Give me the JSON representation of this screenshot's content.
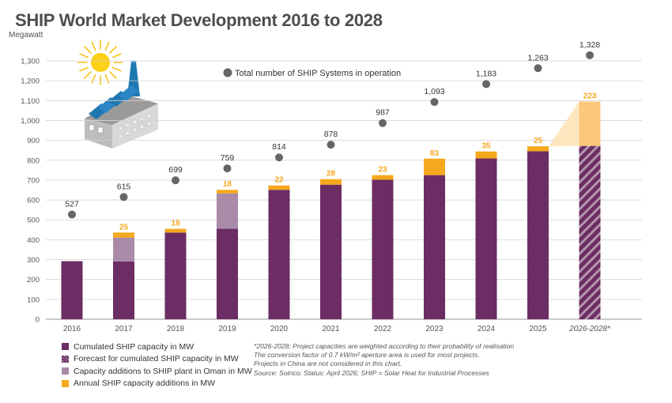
{
  "title": "SHIP World Market Development 2016 to 2028",
  "colors": {
    "cumulated": "#6b2d63",
    "forecast": "#6b2d63",
    "oman": "#a98aa7",
    "annual": "#f5a81c",
    "annual_forecast": "#fbc87a",
    "systems_dot": "#666666",
    "grid": "#d4d4d4",
    "axis_text": "#555555",
    "label_orange": "#f5a81c"
  },
  "chart_data": {
    "type": "bar",
    "ylabel": "Megawatt",
    "ylim": [
      0,
      1300
    ],
    "yticks": [
      "0",
      "100",
      "200",
      "300",
      "400",
      "500",
      "600",
      "700",
      "800",
      "900",
      "1,000",
      "1,100",
      "1,200",
      "1,300"
    ],
    "categories": [
      "2016",
      "2017",
      "2018",
      "2019",
      "2020",
      "2021",
      "2022",
      "2023",
      "2024",
      "2025",
      "2026-2028*"
    ],
    "series": [
      {
        "name": "Cumulated SHIP capacity in MW",
        "values": [
          292,
          291,
          436,
          455,
          651,
          677,
          702,
          725,
          809,
          845,
          null
        ]
      },
      {
        "name": "Forecast for cumulated SHIP capacity in MW",
        "values": [
          null,
          null,
          null,
          null,
          null,
          null,
          null,
          null,
          null,
          null,
          872
        ]
      },
      {
        "name": "Capacity additions to SHIP plant in Oman in MW",
        "values": [
          0,
          120,
          0,
          178,
          0,
          0,
          0,
          0,
          0,
          0,
          0
        ]
      },
      {
        "name": "Annual SHIP capacity additions in MW",
        "values": [
          0,
          25,
          19,
          18,
          22,
          28,
          23,
          83,
          35,
          25,
          223
        ]
      }
    ],
    "annual_labels": [
      "",
      "25",
      "19",
      "18",
      "22",
      "28",
      "23",
      "83",
      "35",
      "25",
      "223"
    ],
    "systems": {
      "name": "Total number of SHIP Systems in operation",
      "values": [
        527,
        615,
        699,
        759,
        814,
        878,
        987,
        1093,
        1183,
        1263,
        1328
      ],
      "labels": [
        "527",
        "615",
        "699",
        "759",
        "814",
        "878",
        "987",
        "1,093",
        "1,183",
        "1,263",
        "1,328"
      ]
    }
  },
  "legend": [
    "Cumulated SHIP capacity in MW",
    "Forecast for cumulated SHIP capacity in MW",
    "Capacity additions to SHIP plant in Oman in MW",
    "Annual SHIP capacity additions in MW"
  ],
  "notes": [
    "*2026-2028; Project capacities are weighted according to their probability of realisation",
    "The conversion factor of 0.7 kW/m² aperture area is used for most projects.",
    "Projects in China are not considered in this chart.",
    "Source: Solrico; Status: April 2026; SHIP = Solar Heat for Industrial Processes"
  ],
  "icons": [
    "sun-icon",
    "factory-icon"
  ]
}
